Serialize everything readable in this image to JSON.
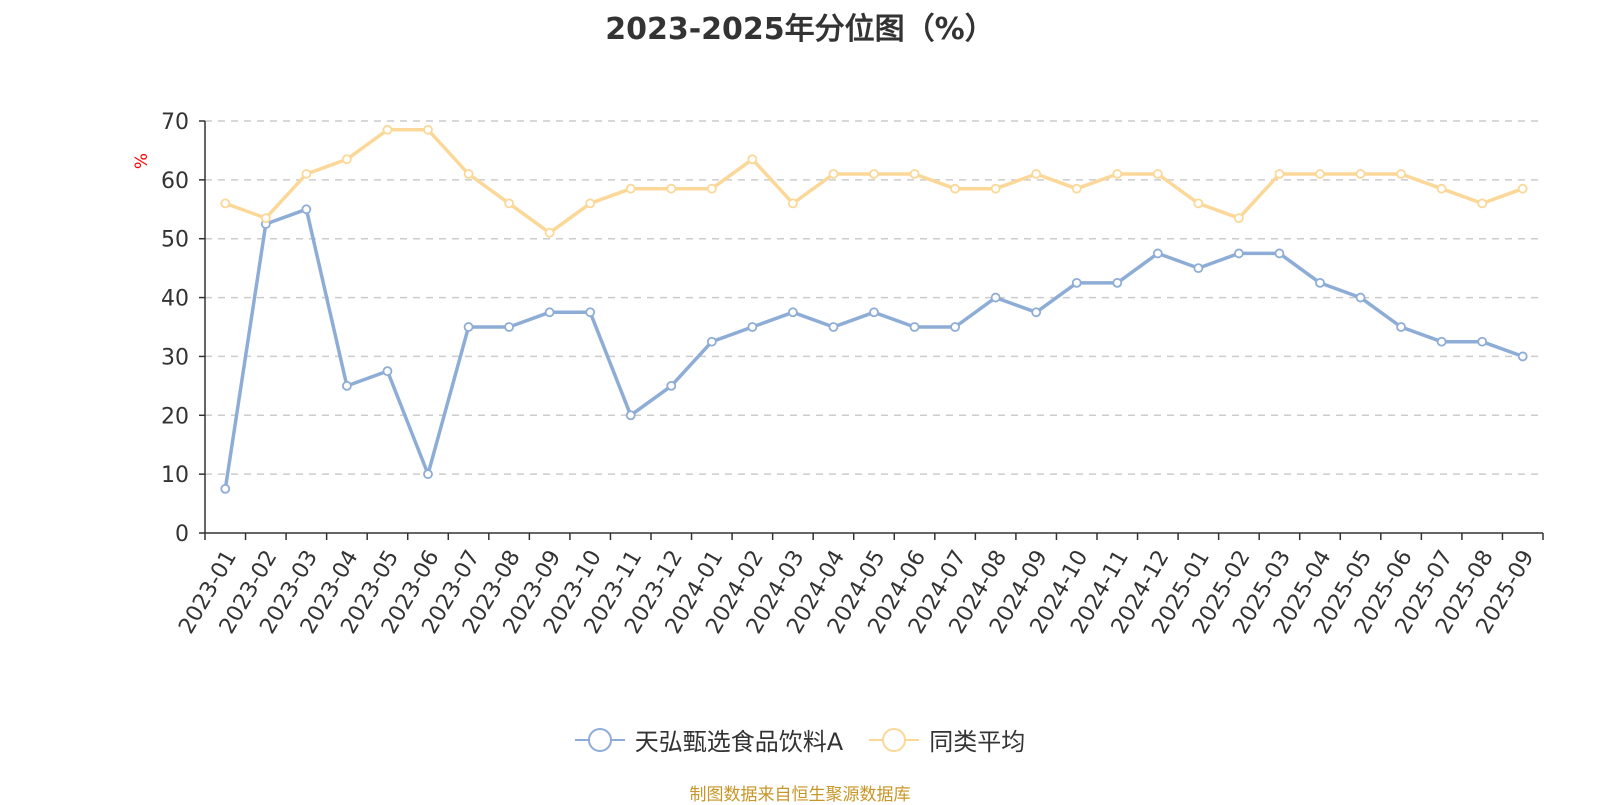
{
  "colors": {
    "series_a": "#8eadd6",
    "series_b": "#fcd898",
    "axis": "#333333",
    "grid": "#cccccc",
    "ylabel": "#ff0000",
    "footer": "#c89626"
  },
  "footer_text": "制图数据来自恒生聚源数据库",
  "chart_data": {
    "type": "line",
    "title": "2023-2025年分位图（%）",
    "xlabel": "",
    "ylabel": "%",
    "ylim": [
      0,
      70
    ],
    "yticks": [
      0,
      10,
      20,
      30,
      40,
      50,
      60,
      70
    ],
    "grid": true,
    "legend_position": "bottom",
    "categories": [
      "2023-01",
      "2023-02",
      "2023-03",
      "2023-04",
      "2023-05",
      "2023-06",
      "2023-07",
      "2023-08",
      "2023-09",
      "2023-10",
      "2023-11",
      "2023-12",
      "2024-01",
      "2024-02",
      "2024-03",
      "2024-04",
      "2024-05",
      "2024-06",
      "2024-07",
      "2024-08",
      "2024-09",
      "2024-10",
      "2024-11",
      "2024-12",
      "2025-01",
      "2025-02",
      "2025-03",
      "2025-04",
      "2025-05",
      "2025-06",
      "2025-07",
      "2025-08",
      "2025-09"
    ],
    "series": [
      {
        "name": "天弘甄选食品饮料A",
        "color_key": "series_a",
        "values": [
          7.5,
          52.5,
          55,
          25,
          27.5,
          10,
          35,
          35,
          37.5,
          37.5,
          20,
          25,
          32.5,
          35,
          37.5,
          35,
          37.5,
          35,
          35,
          40,
          37.5,
          42.5,
          42.5,
          47.5,
          45,
          47.5,
          47.5,
          42.5,
          40,
          35,
          32.5,
          32.5,
          30
        ]
      },
      {
        "name": "同类平均",
        "color_key": "series_b",
        "values": [
          56,
          53.5,
          61,
          63.5,
          68.5,
          68.5,
          61,
          56,
          51,
          56,
          58.5,
          58.5,
          58.5,
          63.5,
          56,
          61,
          61,
          61,
          58.5,
          58.5,
          61,
          58.5,
          61,
          61,
          56,
          53.5,
          61,
          61,
          61,
          61,
          58.5,
          56,
          58.5
        ]
      }
    ]
  }
}
